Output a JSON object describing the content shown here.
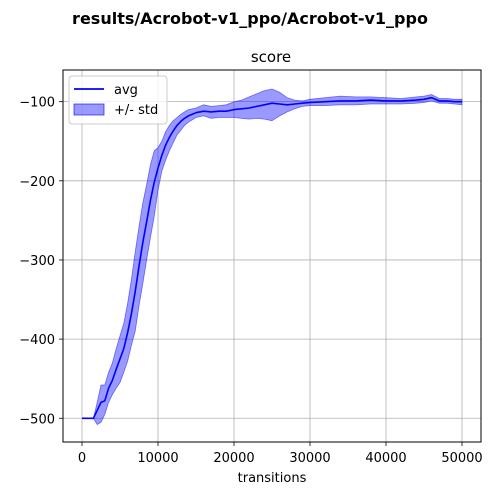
{
  "figure": {
    "suptitle": "results/Acrobot-v1_ppo/Acrobot-v1_ppo"
  },
  "chart_data": {
    "type": "line",
    "title": "score",
    "xlabel": "transitions",
    "ylabel": "",
    "xlim": [
      -2500,
      52500
    ],
    "ylim": [
      -530,
      -60
    ],
    "xticks": [
      0,
      10000,
      20000,
      30000,
      40000,
      50000
    ],
    "yticks": [
      -500,
      -400,
      -300,
      -200,
      -100
    ],
    "xtick_labels": [
      "0",
      "10000",
      "20000",
      "30000",
      "40000",
      "50000"
    ],
    "ytick_labels": [
      "−500",
      "−400",
      "−300",
      "−200",
      "−100"
    ],
    "grid": true,
    "legend_position": "top-left",
    "legend": [
      {
        "label": "avg",
        "kind": "line",
        "color": "#0000ff"
      },
      {
        "label": "+/- std",
        "kind": "area",
        "color": "#0000ff",
        "alpha": 0.4
      }
    ],
    "x": [
      0,
      1500,
      2000,
      2500,
      3000,
      3500,
      4000,
      4500,
      5000,
      5500,
      6000,
      6500,
      7000,
      7500,
      8000,
      8500,
      9000,
      9500,
      10000,
      10500,
      11000,
      11500,
      12000,
      12500,
      13000,
      13500,
      14000,
      15000,
      16000,
      17000,
      18000,
      19000,
      20000,
      21000,
      22000,
      23000,
      24000,
      25000,
      26000,
      27000,
      28000,
      29000,
      30000,
      32000,
      34000,
      36000,
      38000,
      40000,
      42000,
      44000,
      45000,
      46000,
      47000,
      48000,
      49000,
      50000
    ],
    "series": [
      {
        "name": "avg",
        "color": "#0000ff",
        "values": [
          -500,
          -500,
          -490,
          -480,
          -478,
          -462,
          -452,
          -438,
          -425,
          -412,
          -392,
          -368,
          -340,
          -308,
          -278,
          -252,
          -225,
          -202,
          -184,
          -168,
          -155,
          -145,
          -137,
          -130,
          -125,
          -121,
          -118,
          -114,
          -112,
          -113,
          -112,
          -112,
          -110,
          -109,
          -108,
          -106,
          -104,
          -102,
          -103,
          -104,
          -103,
          -102,
          -101,
          -100,
          -99,
          -99,
          -98,
          -99,
          -99,
          -98,
          -97,
          -95,
          -99,
          -99,
          -100,
          -100
        ]
      }
    ],
    "std_band": {
      "name": "+/- std",
      "color": "#0000ff",
      "alpha": 0.4,
      "upper": [
        -500,
        -500,
        -480,
        -458,
        -458,
        -442,
        -430,
        -412,
        -396,
        -380,
        -355,
        -325,
        -290,
        -258,
        -228,
        -205,
        -180,
        -162,
        -158,
        -150,
        -138,
        -130,
        -124,
        -120,
        -116,
        -113,
        -110,
        -108,
        -104,
        -106,
        -105,
        -104,
        -100,
        -98,
        -94,
        -90,
        -86,
        -84,
        -88,
        -95,
        -98,
        -99,
        -97,
        -95,
        -93,
        -94,
        -94,
        -95,
        -96,
        -94,
        -93,
        -91,
        -96,
        -96,
        -97,
        -97
      ],
      "lower": [
        -500,
        -500,
        -508,
        -505,
        -495,
        -480,
        -470,
        -462,
        -455,
        -442,
        -428,
        -408,
        -390,
        -358,
        -330,
        -300,
        -272,
        -245,
        -212,
        -188,
        -174,
        -162,
        -152,
        -142,
        -136,
        -130,
        -126,
        -120,
        -118,
        -121,
        -120,
        -120,
        -120,
        -121,
        -122,
        -121,
        -122,
        -124,
        -118,
        -113,
        -109,
        -106,
        -105,
        -105,
        -104,
        -104,
        -103,
        -103,
        -103,
        -102,
        -101,
        -99,
        -102,
        -102,
        -103,
        -104
      ]
    }
  }
}
